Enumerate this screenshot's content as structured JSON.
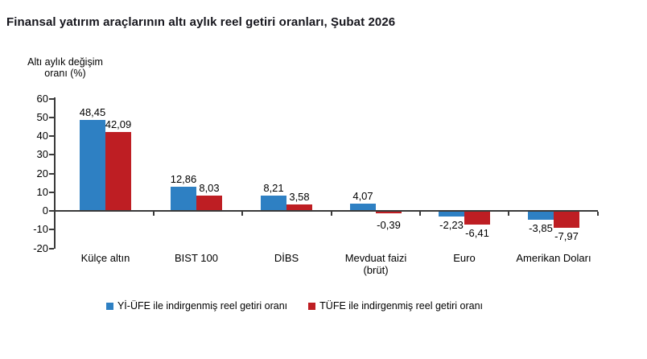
{
  "title": "Finansal yatırım araçlarının altı aylık reel getiri oranları, Şubat 2026",
  "axis_label": {
    "line1": "Altı aylık değişim",
    "line2": "oranı (%)"
  },
  "colors": {
    "series_blue": "#2E80C3",
    "series_red": "#BE1E23",
    "axis": "#3a3a3a",
    "title_text": "#15151c",
    "label_text": "#000000",
    "background": "#ffffff"
  },
  "chart_data": {
    "type": "bar",
    "title": "Finansal yatırım araçlarının altı aylık reel getiri oranları, Şubat 2026",
    "xlabel": "",
    "ylabel": "Altı aylık değişim oranı (%)",
    "ylim": [
      -20,
      60
    ],
    "ytick_step": 10,
    "ytick_labels": [
      "60",
      "50",
      "40",
      "30",
      "20",
      "10",
      "0",
      "-10",
      "-20"
    ],
    "grid": false,
    "legend_position": "bottom",
    "decimal_separator": ",",
    "categories": [
      "Külçe altın",
      "BIST 100",
      "DİBS",
      "Mevduat faizi (brüt)",
      "Euro",
      "Amerikan Doları"
    ],
    "category_label_lines": [
      [
        "Külçe altın"
      ],
      [
        "BIST 100"
      ],
      [
        "DİBS"
      ],
      [
        "Mevduat faizi",
        "(brüt)"
      ],
      [
        "Euro"
      ],
      [
        "Amerikan Doları"
      ]
    ],
    "series": [
      {
        "key": "yiufe",
        "name": "Yİ-ÜFE ile indirgenmiş reel getiri oranı",
        "color": "#2E80C3",
        "values": [
          48.45,
          12.86,
          8.21,
          4.07,
          -2.23,
          -3.85
        ],
        "labels": [
          "48,45",
          "12,86",
          "8,21",
          "4,07",
          "-2,23",
          "-3,85"
        ]
      },
      {
        "key": "tufe",
        "name": "TÜFE ile indirgenmiş reel getiri oranı",
        "color": "#BE1E23",
        "values": [
          42.09,
          8.03,
          3.58,
          -0.39,
          -6.41,
          -7.97
        ],
        "labels": [
          "42,09",
          "8,03",
          "3,58",
          "-0,39",
          "-6,41",
          "-7,97"
        ]
      }
    ]
  }
}
